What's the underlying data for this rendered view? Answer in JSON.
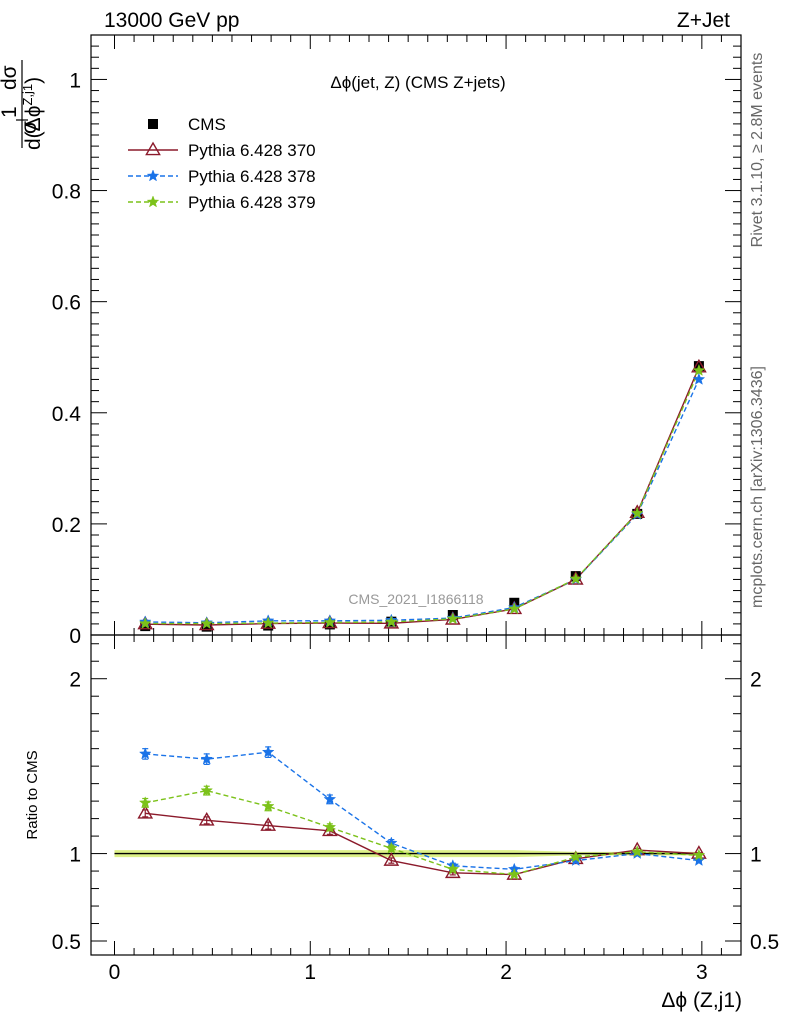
{
  "header": {
    "energy_label": "13000 GeV pp",
    "process_label": "Z+Jet"
  },
  "side_labels": {
    "rivet": "Rivet 3.1.10, ≥ 2.8M events",
    "mcplots": "mcplots.cern.ch [arXiv:1306.3436]"
  },
  "chart_data": [
    {
      "type": "scatter",
      "panel": "main",
      "title": "Δϕ(jet, Z) (CMS Z+jets)",
      "analysis_tag": "CMS_2021_I1866118",
      "ylabel": "1/σ dσ/d(Δϕ^{Z,j1})",
      "xlabel": "Δϕ (Z,j1)",
      "xlim": [
        -0.12,
        3.2
      ],
      "ylim": [
        0,
        1.08
      ],
      "x": [
        0.157,
        0.471,
        0.785,
        1.1,
        1.414,
        1.728,
        2.042,
        2.356,
        2.67,
        2.985
      ],
      "x_ticks": [
        "0",
        "1",
        "2",
        "3"
      ],
      "y_ticks": [
        "0",
        "0.2",
        "0.4",
        "0.6",
        "0.8",
        "1"
      ],
      "legend_position": "top-left",
      "series": [
        {
          "name": "CMS",
          "color": "#000000",
          "marker": "square",
          "values": [
            0.016,
            0.015,
            0.017,
            0.019,
            0.024,
            0.036,
            0.058,
            0.106,
            0.218,
            0.484
          ]
        },
        {
          "name": "Pythia 6.428 370",
          "color": "#8b1a2b",
          "marker": "triangle",
          "line": "solid",
          "values": [
            0.0195,
            0.018,
            0.0205,
            0.0215,
            0.021,
            0.028,
            0.047,
            0.1,
            0.22,
            0.482
          ]
        },
        {
          "name": "Pythia 6.428 378",
          "color": "#1a73e8",
          "marker": "star",
          "line": "dashed",
          "values": [
            0.0235,
            0.022,
            0.0255,
            0.0255,
            0.0265,
            0.0305,
            0.0495,
            0.1,
            0.217,
            0.46
          ]
        },
        {
          "name": "Pythia 6.428 379",
          "color": "#7cc21a",
          "marker": "star",
          "line": "dashed",
          "values": [
            0.0205,
            0.0205,
            0.0215,
            0.0225,
            0.0235,
            0.029,
            0.047,
            0.101,
            0.219,
            0.476
          ]
        }
      ]
    },
    {
      "type": "scatter",
      "panel": "ratio",
      "ylabel": "Ratio to CMS",
      "xlabel": "Δϕ (Z,j1)",
      "xlim": [
        -0.12,
        3.2
      ],
      "ylim": [
        0.42,
        2.25
      ],
      "y_ticks": [
        "0.5",
        "1",
        "2"
      ],
      "x": [
        0.157,
        0.471,
        0.785,
        1.1,
        1.414,
        1.728,
        2.042,
        2.356,
        2.67,
        2.985
      ],
      "series": [
        {
          "name": "Pythia 6.428 370",
          "color": "#8b1a2b",
          "marker": "triangle",
          "line": "solid",
          "values": [
            1.23,
            1.19,
            1.16,
            1.13,
            0.96,
            0.89,
            0.88,
            0.97,
            1.02,
            1.0
          ],
          "errors": [
            0.02,
            0.02,
            0.02,
            0.02,
            0.015,
            0.012,
            0.01,
            0.01,
            0.01,
            0.005
          ]
        },
        {
          "name": "Pythia 6.428 378",
          "color": "#1a73e8",
          "marker": "star",
          "line": "dashed",
          "values": [
            1.57,
            1.54,
            1.58,
            1.31,
            1.06,
            0.93,
            0.91,
            0.96,
            1.0,
            0.96
          ],
          "errors": [
            0.03,
            0.03,
            0.03,
            0.025,
            0.02,
            0.015,
            0.012,
            0.01,
            0.01,
            0.006
          ]
        },
        {
          "name": "Pythia 6.428 379",
          "color": "#7cc21a",
          "marker": "star",
          "line": "dashed",
          "values": [
            1.29,
            1.36,
            1.27,
            1.15,
            1.03,
            0.91,
            0.88,
            0.98,
            1.01,
            0.99
          ],
          "errors": [
            0.025,
            0.025,
            0.025,
            0.02,
            0.018,
            0.012,
            0.01,
            0.01,
            0.01,
            0.005
          ]
        }
      ],
      "reference_band": {
        "name": "CMS uncertainty",
        "color": "#d9f07a",
        "values": [
          0.02,
          0.02,
          0.02,
          0.02,
          0.02,
          0.02,
          0.02,
          0.01,
          0.01,
          0.01
        ]
      }
    }
  ]
}
